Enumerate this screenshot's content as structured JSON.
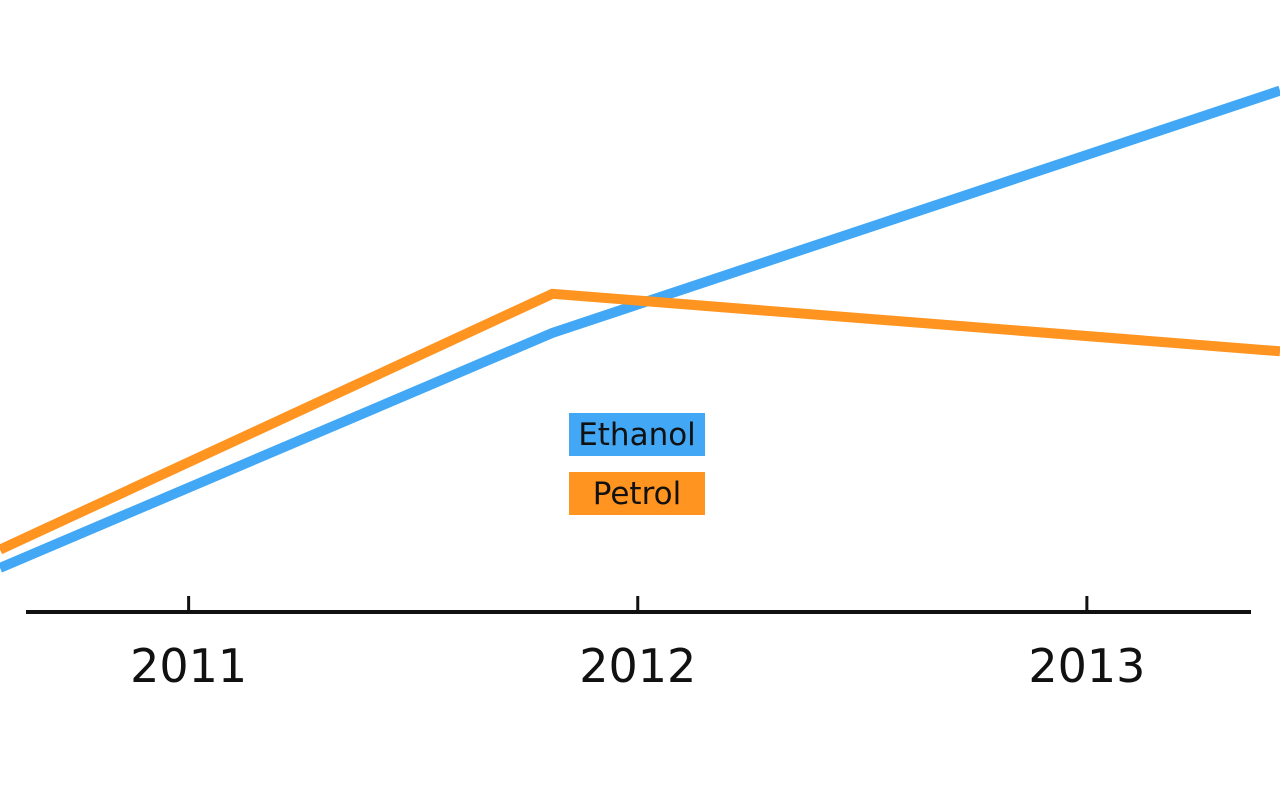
{
  "chart_data": {
    "type": "line",
    "x": [
      "2011",
      "2012",
      "2013"
    ],
    "x_axis_ticks": [
      "2011",
      "2012",
      "2013"
    ],
    "series": [
      {
        "name": "Ethanol",
        "color": "#42a8f5",
        "points": [
          {
            "x": 2010.58,
            "y": 3.6
          },
          {
            "x": 2011.81,
            "y": 22.8
          },
          {
            "x": 2013.43,
            "y": 42.6
          }
        ]
      },
      {
        "name": "Petrol",
        "color": "#ff9420",
        "points": [
          {
            "x": 2010.58,
            "y": 5.1
          },
          {
            "x": 2011.81,
            "y": 26.0
          },
          {
            "x": 2013.43,
            "y": 21.3
          }
        ]
      }
    ],
    "xlim": [
      2010.58,
      2013.43
    ],
    "ylim": [
      0,
      50
    ],
    "grid": false,
    "legend_position": "center"
  }
}
